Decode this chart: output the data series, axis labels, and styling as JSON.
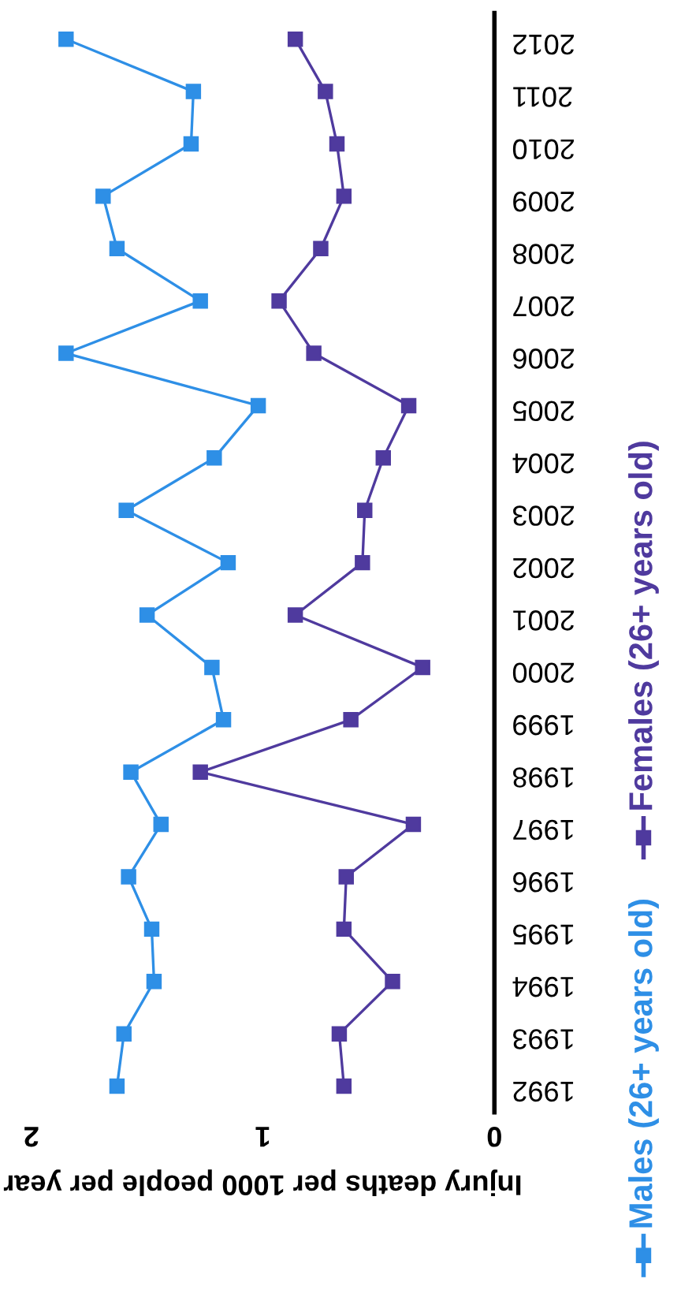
{
  "chart_data": {
    "type": "line",
    "orientation": "horizontal",
    "xlabel": "Injury deaths per 1000 people per year",
    "categories": [
      "2012",
      "2011",
      "2010",
      "2009",
      "2008",
      "2007",
      "2006",
      "2005",
      "2004",
      "2003",
      "2002",
      "2001",
      "2000",
      "1999",
      "1998",
      "1997",
      "1996",
      "1995",
      "1994",
      "1993",
      "1992"
    ],
    "series": [
      {
        "name": "Males (26+ years old)",
        "color": "#2e8fe6",
        "values": [
          1.85,
          1.3,
          1.31,
          1.69,
          1.63,
          1.27,
          1.85,
          1.02,
          1.21,
          1.59,
          1.15,
          1.5,
          1.22,
          1.17,
          1.57,
          1.44,
          1.58,
          1.48,
          1.47,
          1.6,
          1.63
        ]
      },
      {
        "name": "Females (26+ years old)",
        "color": "#4f3a9e",
        "values": [
          0.86,
          0.73,
          0.68,
          0.65,
          0.75,
          0.93,
          0.78,
          0.37,
          0.48,
          0.56,
          0.57,
          0.86,
          0.31,
          0.62,
          1.27,
          0.35,
          0.64,
          0.65,
          0.44,
          0.67,
          0.65
        ]
      }
    ],
    "xlim": [
      2,
      0
    ],
    "xticks": [
      2,
      1,
      0
    ],
    "marker": "square",
    "line_style": "solid",
    "legend": "right",
    "grid": false
  }
}
